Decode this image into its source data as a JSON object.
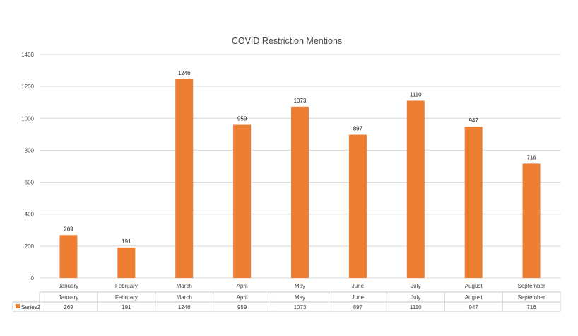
{
  "chart_data": {
    "type": "bar",
    "title": "COVID Restriction Mentions",
    "xlabel": "",
    "ylabel": "",
    "categories": [
      "January",
      "February",
      "March",
      "April",
      "May",
      "June",
      "July",
      "August",
      "September"
    ],
    "series": [
      {
        "name": "Series2",
        "values": [
          269,
          191,
          1246,
          959,
          1073,
          897,
          1110,
          947,
          716
        ],
        "color": "#ed7d31"
      }
    ],
    "ylim": [
      0,
      1400
    ],
    "yticks": [
      0,
      200,
      400,
      600,
      800,
      1000,
      1200,
      1400
    ],
    "grid": true,
    "data_labels": true,
    "data_table": true
  }
}
